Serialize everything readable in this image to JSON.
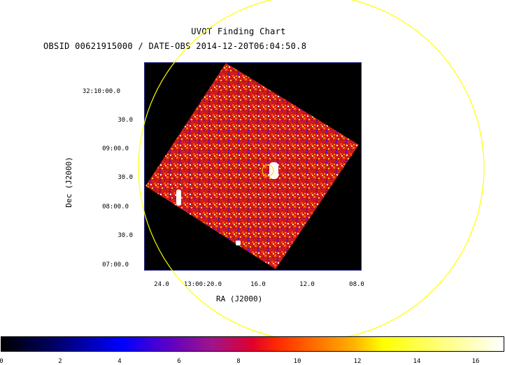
{
  "title": "UVOT Finding Chart",
  "subtitle": "OBSID 00621915000 / DATE-OBS 2014-12-20T06:04:50.8",
  "dec_axis": {
    "label": "Dec (J2000)",
    "ticks": [
      "32:10:00.0",
      "30.0",
      "09:00.0",
      "30.0",
      "08:00.0",
      "30.0",
      "07:00.0"
    ]
  },
  "ra_axis": {
    "label": "RA (J2000)",
    "ticks": [
      "24.0",
      "13:00:20.0",
      "16.0",
      "12.0",
      "08.0"
    ]
  },
  "colorbar": {
    "ticks": [
      "0",
      "2",
      "4",
      "6",
      "8",
      "10",
      "12",
      "14",
      "16"
    ]
  },
  "colors": {
    "circle": "#ffff00",
    "frame": "#2a2a8c",
    "background": "#000000"
  }
}
